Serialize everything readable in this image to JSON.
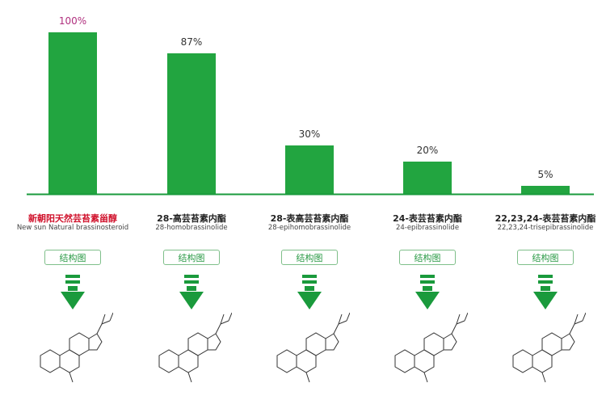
{
  "chart_data": {
    "type": "bar",
    "categories": [
      "新朝阳天然芸苔素甾醇",
      "28-高芸苔素内酯",
      "28-表高芸苔素内酯",
      "24-表芸苔素内酯",
      "22,23,24-表芸苔素内酯"
    ],
    "subcategories": [
      "New sun Natural brassinosteroid",
      "28-homobrassinolide",
      "28-epihomobrassinolide",
      "24-epibrassinolide",
      "22,23,24-trisepibrassinolide"
    ],
    "values": [
      100,
      87,
      30,
      20,
      5
    ],
    "data_labels": [
      "100%",
      "87%",
      "30%",
      "20%",
      "5%"
    ],
    "ylim": [
      0,
      100
    ],
    "grid": false,
    "colors": {
      "bar": "#22a540",
      "baseline": "#1a9a3c",
      "highlight_label": "#d0112b",
      "first_value_label": "#b0307e"
    }
  },
  "structure_button_label": "结构图",
  "icons": [
    "double-bar-down-arrow-icon",
    "molecular-structure-diagram"
  ]
}
